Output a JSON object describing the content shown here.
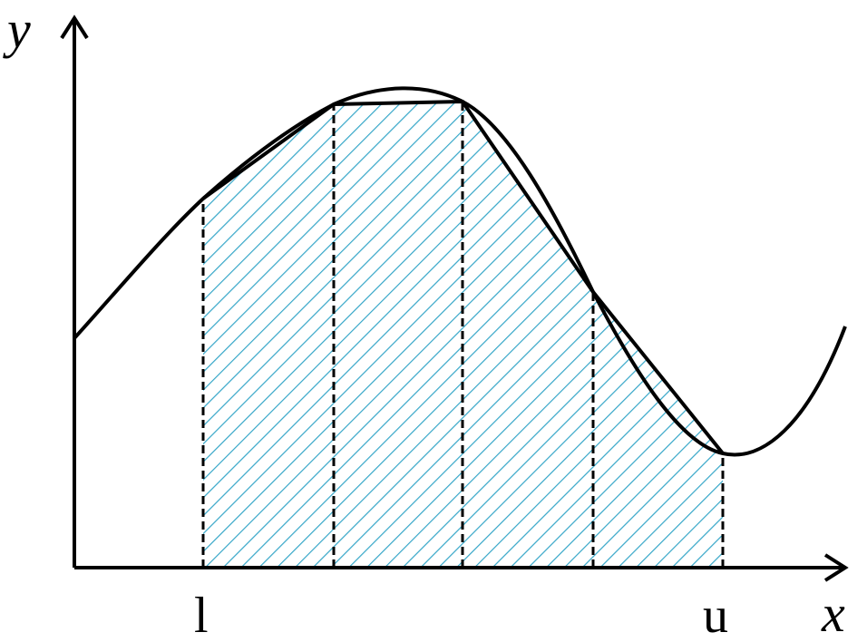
{
  "diagram": {
    "axes": {
      "x_label": "x",
      "y_label": "y"
    },
    "bounds": {
      "lower": "l",
      "upper": "u"
    },
    "trapezoid_count": 4,
    "colors": {
      "hatch": "#35a6c8",
      "line": "#000000",
      "background": "#ffffff"
    }
  }
}
